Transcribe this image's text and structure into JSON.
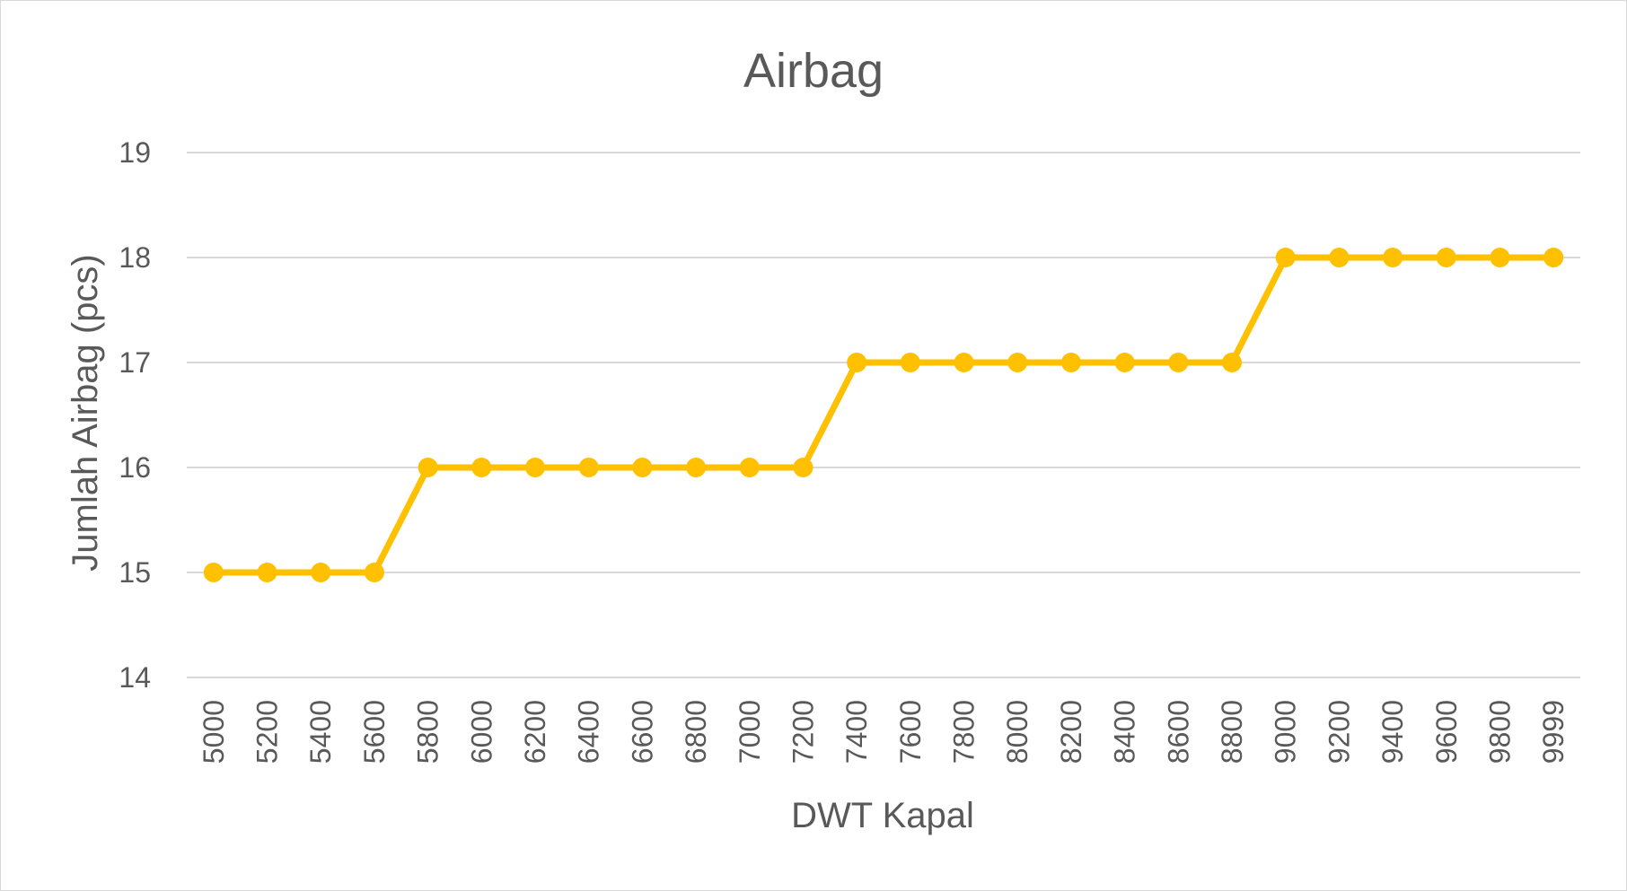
{
  "chart_data": {
    "type": "line",
    "title": "Airbag",
    "xlabel": "DWT Kapal",
    "ylabel": "Jumlah Airbag (pcs)",
    "categories": [
      "5000",
      "5200",
      "5400",
      "5600",
      "5800",
      "6000",
      "6200",
      "6400",
      "6600",
      "6800",
      "7000",
      "7200",
      "7400",
      "7600",
      "7800",
      "8000",
      "8200",
      "8400",
      "8600",
      "8800",
      "9000",
      "9200",
      "9400",
      "9600",
      "9800",
      "9999"
    ],
    "series": [
      {
        "values": [
          15,
          15,
          15,
          15,
          16,
          16,
          16,
          16,
          16,
          16,
          16,
          16,
          17,
          17,
          17,
          17,
          17,
          17,
          17,
          17,
          18,
          18,
          18,
          18,
          18,
          18
        ]
      }
    ],
    "ylim": [
      14,
      19
    ],
    "yticks": [
      14,
      15,
      16,
      17,
      18,
      19
    ],
    "grid": true,
    "legend": "none",
    "colors": {
      "series": "#FFC000",
      "grid": "#d9d9d9",
      "text": "#595959",
      "border": "#d9d9d9"
    }
  }
}
